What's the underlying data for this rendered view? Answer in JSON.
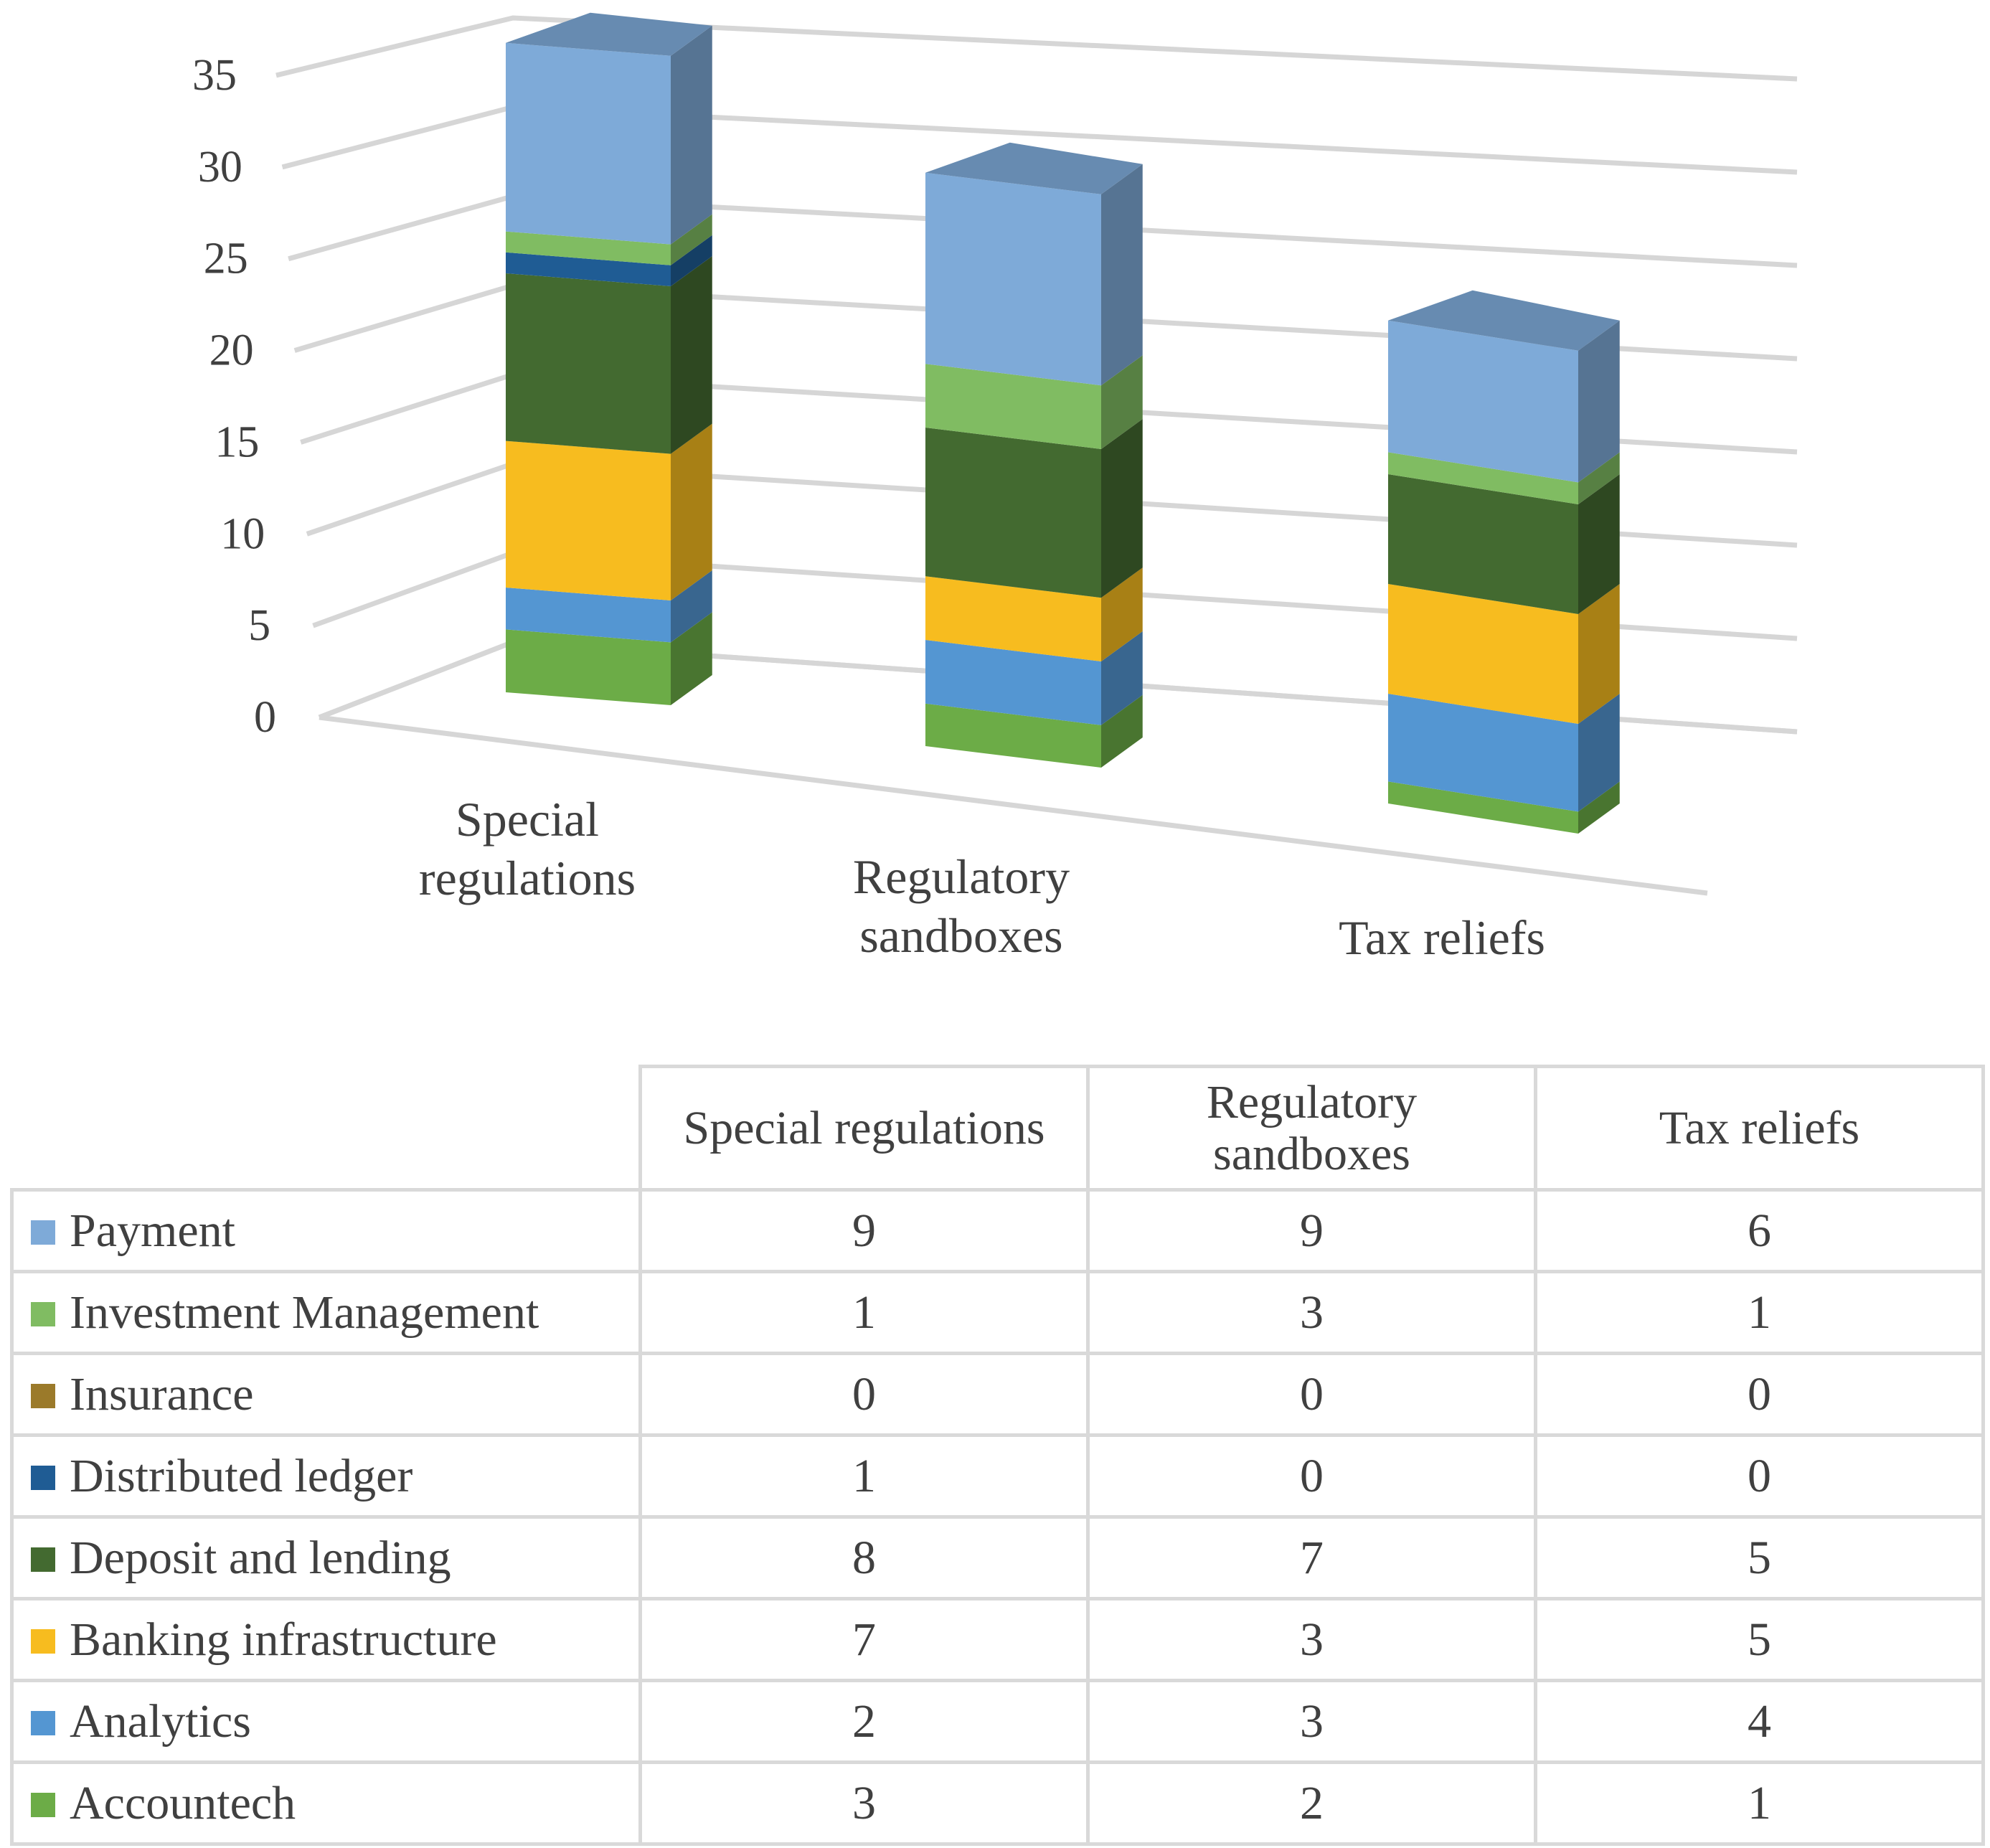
{
  "chart_data": {
    "type": "bar",
    "stacked": true,
    "three_d": true,
    "categories": [
      "Special regulations",
      "Regulatory sandboxes",
      "Tax reliefs"
    ],
    "category_axis_labels": [
      [
        "Special",
        "regulations"
      ],
      [
        "Regulatory",
        "sandboxes"
      ],
      [
        "Tax reliefs"
      ]
    ],
    "table_header_labels": [
      [
        "Special regulations"
      ],
      [
        "Regulatory",
        "sandboxes"
      ],
      [
        "Tax reliefs"
      ]
    ],
    "yticks": [
      "0",
      "5",
      "10",
      "15",
      "20",
      "25",
      "30",
      "35"
    ],
    "ylim": [
      0,
      35
    ],
    "grid": true,
    "legend": "data table below chart",
    "title": "",
    "xlabel": "",
    "ylabel": "",
    "series": [
      {
        "name": "Payment",
        "values": [
          9,
          9,
          6
        ],
        "color": "#7eaad8"
      },
      {
        "name": "Investment Management",
        "values": [
          1,
          3,
          1
        ],
        "color": "#80bc62"
      },
      {
        "name": "Insurance",
        "values": [
          0,
          0,
          0
        ],
        "color": "#9b7a2a"
      },
      {
        "name": "Distributed ledger",
        "values": [
          1,
          0,
          0
        ],
        "color": "#1f5c94"
      },
      {
        "name": "Deposit and lending",
        "values": [
          8,
          7,
          5
        ],
        "color": "#436a30"
      },
      {
        "name": "Banking infrastructure",
        "values": [
          7,
          3,
          5
        ],
        "color": "#f7bc1f"
      },
      {
        "name": "Analytics",
        "values": [
          2,
          3,
          4
        ],
        "color": "#5496d2"
      },
      {
        "name": "Accountech",
        "values": [
          3,
          2,
          1
        ],
        "color": "#6cac47"
      }
    ]
  }
}
